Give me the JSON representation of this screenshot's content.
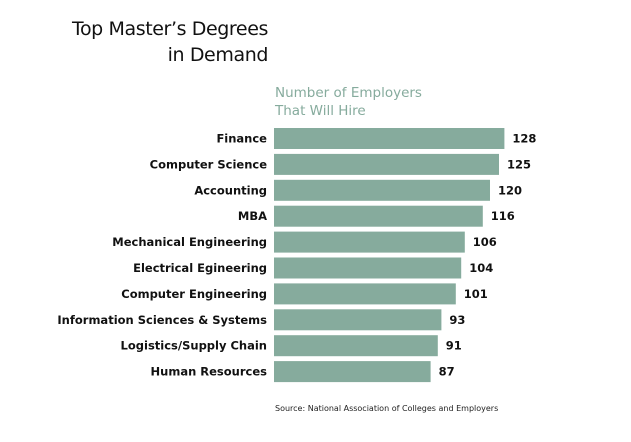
{
  "colors": {
    "bar": "#86ab9d",
    "subtitle": "#86ab9d",
    "text": "#111111"
  },
  "chart_data": {
    "type": "bar",
    "orientation": "horizontal",
    "title_lines": [
      "Top Master’s Degrees",
      "in Demand"
    ],
    "subtitle_lines": [
      "Number of Employers",
      "That Will Hire"
    ],
    "categories": [
      "Finance",
      "Computer Science",
      "Accounting",
      "MBA",
      "Mechanical Engineering",
      "Electrical Egineering",
      "Computer Engineering",
      "Information Sciences & Systems",
      "Logistics/Supply Chain",
      "Human Resources"
    ],
    "values": [
      128,
      125,
      120,
      116,
      106,
      104,
      101,
      93,
      91,
      87
    ],
    "xlabel": "",
    "ylabel": "",
    "grid": false,
    "data_labels": true
  },
  "source": "Source: National Association of Colleges and Employers"
}
